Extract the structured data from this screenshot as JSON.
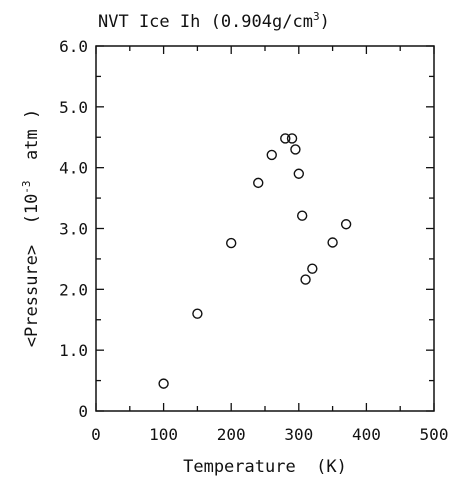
{
  "chart_data": {
    "type": "scatter",
    "title": "NVT Ice Ih (0.904g/cm",
    "title_superscript": "3",
    "title_close": ")",
    "xlabel": "Temperature  (K)",
    "ylabel_main": "<Pressure>  (10",
    "ylabel_exp": "-3",
    "ylabel_unit": "  atm )",
    "xlim": [
      0,
      500
    ],
    "ylim": [
      0,
      6.0
    ],
    "x_ticks": [
      "0",
      "100",
      "200",
      "300",
      "400",
      "500"
    ],
    "y_ticks": [
      "0",
      "1.0",
      "2.0",
      "3.0",
      "4.0",
      "5.0",
      "6.0"
    ],
    "grid": false,
    "marker": "open-circle",
    "color": "#111111",
    "points": [
      {
        "x": 100,
        "y": 0.45
      },
      {
        "x": 150,
        "y": 1.6
      },
      {
        "x": 200,
        "y": 2.76
      },
      {
        "x": 240,
        "y": 3.75
      },
      {
        "x": 260,
        "y": 4.21
      },
      {
        "x": 280,
        "y": 4.48
      },
      {
        "x": 290,
        "y": 4.48
      },
      {
        "x": 295,
        "y": 4.3
      },
      {
        "x": 300,
        "y": 3.9
      },
      {
        "x": 305,
        "y": 3.21
      },
      {
        "x": 310,
        "y": 2.16
      },
      {
        "x": 320,
        "y": 2.34
      },
      {
        "x": 350,
        "y": 2.77
      },
      {
        "x": 370,
        "y": 3.07
      }
    ]
  }
}
